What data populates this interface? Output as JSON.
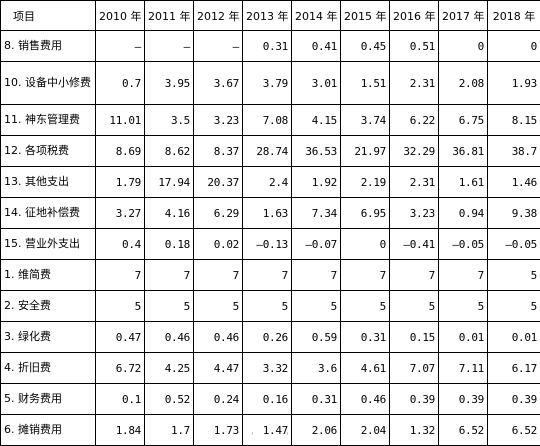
{
  "table": {
    "header": [
      "项目",
      "2010 年",
      "2011 年",
      "2012 年",
      "2013 年",
      "2014 年",
      "2015 年",
      "2016 年",
      "2017 年",
      "2018 年"
    ],
    "rows": [
      {
        "label": "8. 销售费用",
        "values": [
          "–",
          "–",
          "–",
          "0.31",
          "0.41",
          "0.45",
          "0.51",
          "0",
          "0"
        ]
      },
      {
        "label": "10. 设备中小修费",
        "values": [
          "0.7",
          "3.95",
          "3.67",
          "3.79",
          "3.01",
          "1.51",
          "2.31",
          "2.08",
          "1.93"
        ]
      },
      {
        "label": "11. 神东管理费",
        "values": [
          "11.01",
          "3.5",
          "3.23",
          "7.08",
          "4.15",
          "3.74",
          "6.22",
          "6.75",
          "8.15"
        ]
      },
      {
        "label": "12. 各项税费",
        "values": [
          "8.69",
          "8.62",
          "8.37",
          "28.74",
          "36.53",
          "21.97",
          "32.29",
          "36.81",
          "38.7"
        ]
      },
      {
        "label": "13. 其他支出",
        "values": [
          "1.79",
          "17.94",
          "20.37",
          "2.4",
          "1.92",
          "2.19",
          "2.31",
          "1.61",
          "1.46"
        ]
      },
      {
        "label": "14. 征地补偿费",
        "values": [
          "3.27",
          "4.16",
          "6.29",
          "1.63",
          "7.34",
          "6.95",
          "3.23",
          "0.94",
          "9.38"
        ]
      },
      {
        "label": "15. 营业外支出",
        "values": [
          "0.4",
          "0.18",
          "0.02",
          "–0.13",
          "–0.07",
          "0",
          "–0.41",
          "–0.05",
          "–0.05"
        ]
      },
      {
        "label": "1. 维简费",
        "values": [
          "7",
          "7",
          "7",
          "7",
          "7",
          "7",
          "7",
          "7",
          "5"
        ]
      },
      {
        "label": "2. 安全费",
        "values": [
          "5",
          "5",
          "5",
          "5",
          "5",
          "5",
          "5",
          "5",
          "5"
        ]
      },
      {
        "label": "3. 绿化费",
        "values": [
          "0.47",
          "0.46",
          "0.46",
          "0.26",
          "0.59",
          "0.31",
          "0.15",
          "0.01",
          "0.01"
        ]
      },
      {
        "label": "4. 折旧费",
        "values": [
          "6.72",
          "4.25",
          "4.47",
          "3.32",
          "3.6",
          "4.61",
          "7.07",
          "7.11",
          "6.17"
        ]
      },
      {
        "label": "5. 财务费用",
        "values": [
          "0.1",
          "0.52",
          "0.24",
          "0.16",
          "0.31",
          "0.46",
          "0.39",
          "0.39",
          "0.39"
        ]
      },
      {
        "label": "6. 摊销费用",
        "values": [
          "1.84",
          "1.7",
          "1.73",
          "1.47",
          "2.06",
          "2.04",
          "1.32",
          "6.52",
          "6.52"
        ]
      }
    ]
  }
}
